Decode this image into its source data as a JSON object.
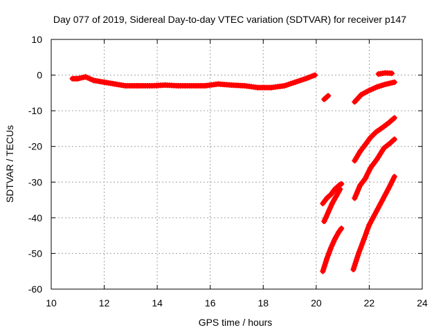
{
  "chart_data": {
    "type": "scatter",
    "title": "Day 077 of 2019, Sidereal Day-to-day VTEC variation (SDTVAR) for receiver p147",
    "xlabel": "GPS time / hours",
    "ylabel": "SDTVAR / TECUs",
    "xlim": [
      10,
      24
    ],
    "ylim": [
      -60,
      10
    ],
    "xticks": [
      "10",
      "12",
      "14",
      "16",
      "18",
      "20",
      "22",
      "24"
    ],
    "yticks": [
      "10",
      "0",
      "-10",
      "-20",
      "-30",
      "-40",
      "-50",
      "-60"
    ],
    "grid": true,
    "legend": "none",
    "marker_color": "#ff0000",
    "series": [
      {
        "x": [
          10.8,
          11.0,
          11.3,
          11.6,
          12.0,
          12.4,
          12.8,
          13.3,
          13.8,
          14.3,
          14.8,
          15.3,
          15.8,
          16.3,
          16.8,
          17.3,
          17.8,
          18.3,
          18.8,
          19.2,
          19.6,
          19.95
        ],
        "values": [
          -1.0,
          -1.0,
          -0.5,
          -1.5,
          -2.0,
          -2.5,
          -3.0,
          -3.0,
          -3.0,
          -2.8,
          -3.0,
          -3.0,
          -3.0,
          -2.5,
          -2.8,
          -3.0,
          -3.5,
          -3.5,
          -3.0,
          -2.0,
          -1.0,
          0.0
        ]
      },
      {
        "x": [
          20.3,
          20.45
        ],
        "values": [
          -6.8,
          -5.8
        ]
      },
      {
        "x": [
          20.25,
          20.4,
          20.55,
          20.7,
          20.85,
          20.95
        ],
        "values": [
          -36.0,
          -34.5,
          -33.5,
          -32.0,
          -31.0,
          -30.5
        ]
      },
      {
        "x": [
          20.3,
          20.45,
          20.6,
          20.75,
          20.9
        ],
        "values": [
          -41.0,
          -38.5,
          -36.0,
          -34.0,
          -32.0
        ]
      },
      {
        "x": [
          20.25,
          20.4,
          20.55,
          20.7,
          20.85,
          20.95
        ],
        "values": [
          -55.0,
          -51.5,
          -48.5,
          -46.0,
          -44.0,
          -43.0
        ]
      },
      {
        "x": [
          21.45,
          21.7,
          22.0,
          22.3,
          22.6,
          22.95
        ],
        "values": [
          -7.5,
          -5.5,
          -4.3,
          -3.3,
          -2.6,
          -2.0
        ]
      },
      {
        "x": [
          22.35,
          22.6,
          22.85
        ],
        "values": [
          0.3,
          0.6,
          0.5
        ]
      },
      {
        "x": [
          21.45,
          21.65,
          21.85,
          22.05,
          22.25,
          22.5,
          22.75,
          22.95
        ],
        "values": [
          -24.0,
          -21.5,
          -19.5,
          -17.5,
          -16.0,
          -14.7,
          -13.3,
          -12.0
        ]
      },
      {
        "x": [
          21.45,
          21.65,
          21.85,
          22.05,
          22.3,
          22.55,
          22.8,
          22.95
        ],
        "values": [
          -34.5,
          -31.0,
          -29.0,
          -26.0,
          -23.5,
          -20.5,
          -19.0,
          -18.0
        ]
      },
      {
        "x": [
          21.4,
          21.6,
          21.8,
          22.0,
          22.25,
          22.5,
          22.75,
          22.95
        ],
        "values": [
          -54.5,
          -50.0,
          -46.0,
          -42.0,
          -38.5,
          -35.0,
          -31.5,
          -28.5
        ]
      }
    ]
  }
}
